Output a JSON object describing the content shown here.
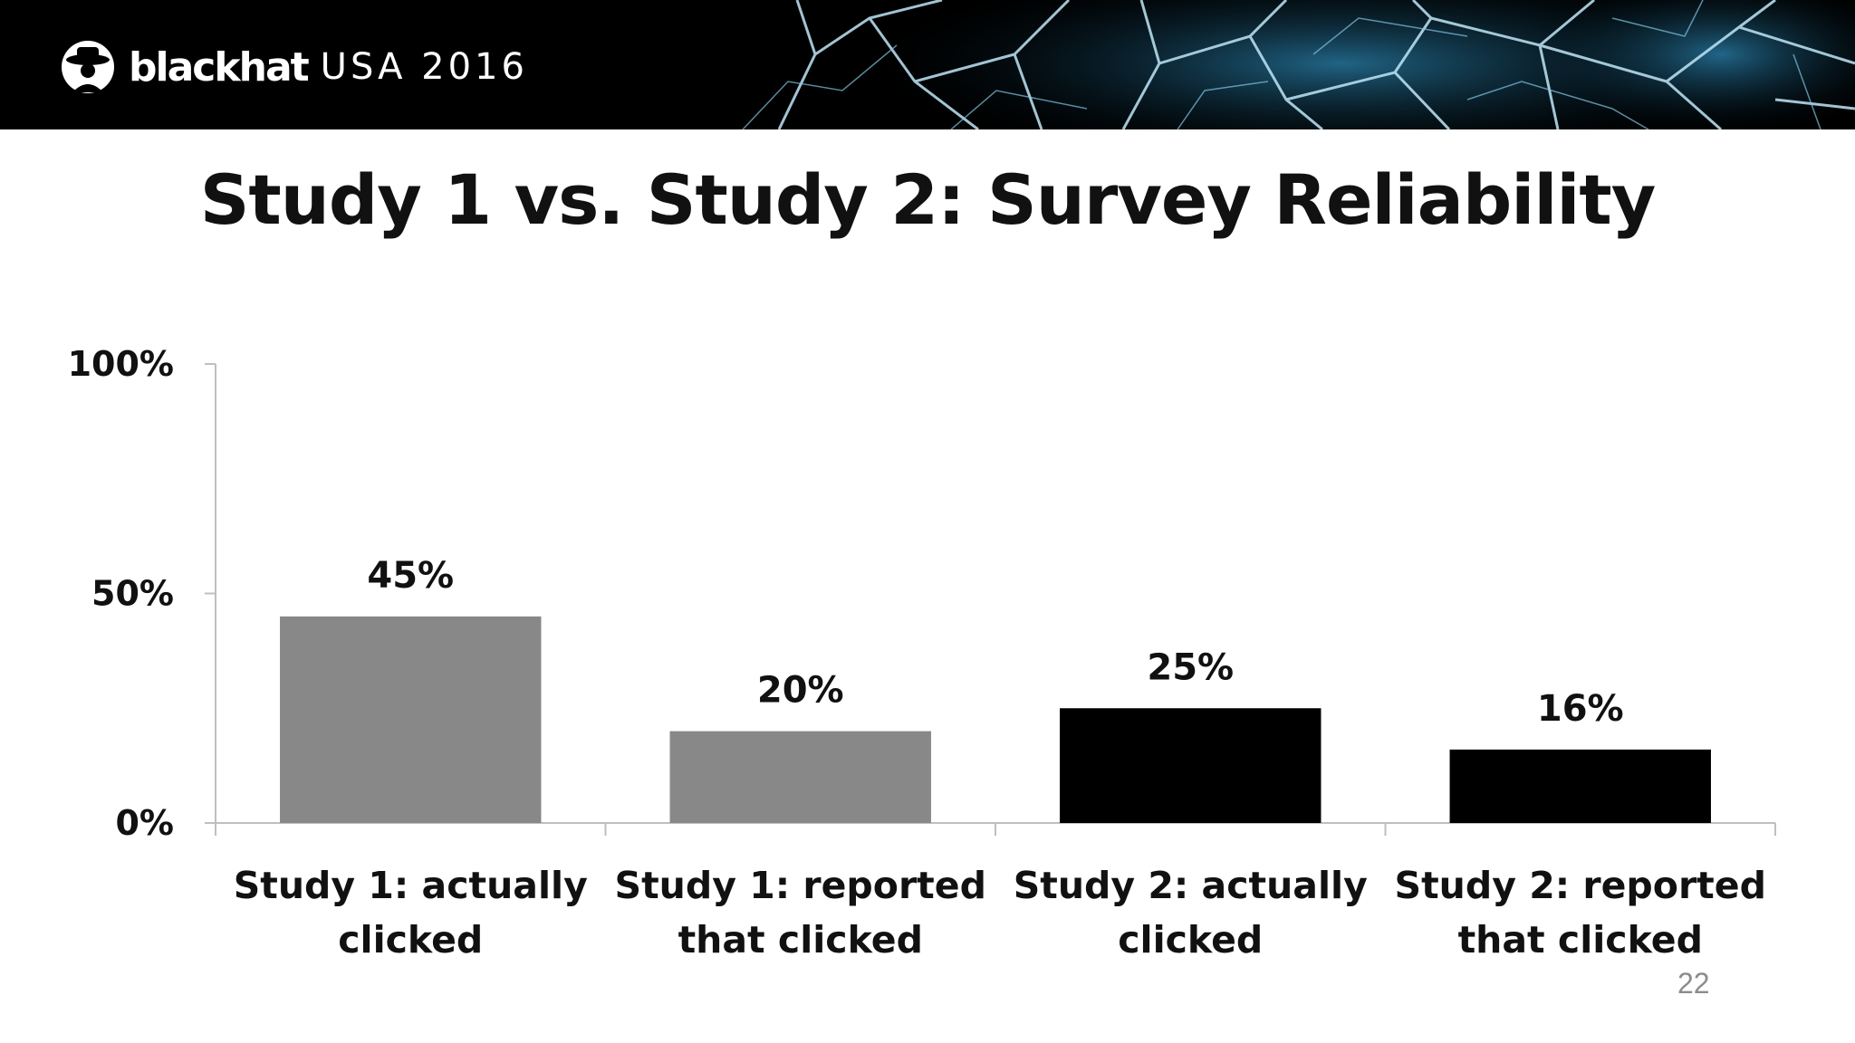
{
  "header": {
    "brand_name": "blackhat",
    "brand_event": "USA 2016"
  },
  "slide": {
    "title": "Study 1 vs. Study 2: Survey Reliability",
    "page_number": "22"
  },
  "colors": {
    "study1": "#888888",
    "study2": "#000000",
    "axis": "#bfbfbf"
  },
  "icons": {
    "logo": "hat-figure-icon"
  },
  "chart_data": {
    "type": "bar",
    "categories": [
      [
        "Study 1: actually",
        "clicked"
      ],
      [
        "Study 1: reported",
        "that clicked"
      ],
      [
        "Study 2: actually",
        "clicked"
      ],
      [
        "Study 2: reported",
        "that clicked"
      ]
    ],
    "values": [
      45,
      20,
      25,
      16
    ],
    "data_labels": [
      "45%",
      "20%",
      "25%",
      "16%"
    ],
    "bar_colors": [
      "#888888",
      "#888888",
      "#000000",
      "#000000"
    ],
    "ylim": [
      0,
      100
    ],
    "yticks": [
      0,
      50,
      100
    ],
    "ytick_labels": [
      "0%",
      "50%",
      "100%"
    ],
    "grid": false,
    "legend": "none"
  }
}
